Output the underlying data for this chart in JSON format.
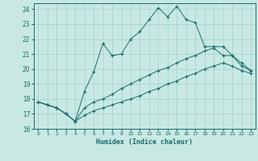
{
  "xlabel": "Humidex (Indice chaleur)",
  "ylabel": "",
  "bg_color": "#c8e8e4",
  "line_color": "#1a6b6b",
  "grid_color": "#aad4d0",
  "xlim": [
    -0.5,
    23.5
  ],
  "ylim": [
    16,
    24.4
  ],
  "xticks": [
    0,
    1,
    2,
    3,
    4,
    5,
    6,
    7,
    8,
    9,
    10,
    11,
    12,
    13,
    14,
    15,
    16,
    17,
    18,
    19,
    20,
    21,
    22,
    23
  ],
  "yticks": [
    16,
    17,
    18,
    19,
    20,
    21,
    22,
    23,
    24
  ],
  "line1_x": [
    0,
    1,
    2,
    3,
    4,
    5,
    6,
    7,
    8,
    9,
    10,
    11,
    12,
    13,
    14,
    15,
    16,
    17,
    18,
    19,
    20,
    21,
    22,
    23
  ],
  "line1_y": [
    17.8,
    17.6,
    17.4,
    17.0,
    16.5,
    18.5,
    19.8,
    21.7,
    20.9,
    21.0,
    22.0,
    22.5,
    23.3,
    24.1,
    23.5,
    24.2,
    23.3,
    23.1,
    21.5,
    21.5,
    21.5,
    20.9,
    20.2,
    19.9
  ],
  "line2_x": [
    0,
    1,
    2,
    3,
    4,
    5,
    6,
    7,
    8,
    9,
    10,
    11,
    12,
    13,
    14,
    15,
    16,
    17,
    18,
    19,
    20,
    21,
    22,
    23
  ],
  "line2_y": [
    17.8,
    17.6,
    17.4,
    17.0,
    16.5,
    17.4,
    17.8,
    18.0,
    18.3,
    18.7,
    19.0,
    19.3,
    19.6,
    19.9,
    20.1,
    20.4,
    20.7,
    20.9,
    21.2,
    21.4,
    20.9,
    20.9,
    20.4,
    19.9
  ],
  "line3_x": [
    0,
    1,
    2,
    3,
    4,
    5,
    6,
    7,
    8,
    9,
    10,
    11,
    12,
    13,
    14,
    15,
    16,
    17,
    18,
    19,
    20,
    21,
    22,
    23
  ],
  "line3_y": [
    17.8,
    17.6,
    17.4,
    17.0,
    16.5,
    16.9,
    17.2,
    17.4,
    17.6,
    17.8,
    18.0,
    18.2,
    18.5,
    18.7,
    19.0,
    19.2,
    19.5,
    19.7,
    20.0,
    20.2,
    20.4,
    20.2,
    19.9,
    19.7
  ]
}
